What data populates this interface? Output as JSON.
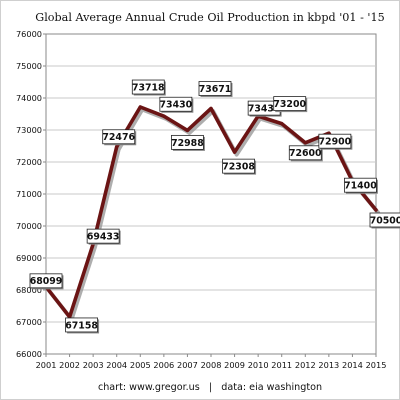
{
  "chart_data": {
    "type": "line",
    "title": "Global Average Annual Crude Oil Production in kbpd '01 - '15",
    "credit": "chart: www.gregor.us   |   data: eia washington",
    "xlabel": "",
    "ylabel": "",
    "x": [
      "2001",
      "2002",
      "2003",
      "2004",
      "2005",
      "2006",
      "2007",
      "2008",
      "2009",
      "2010",
      "2011",
      "2012",
      "2013",
      "2014",
      "2015"
    ],
    "series": [
      {
        "values": [
          68099,
          67158,
          69433,
          72476,
          73718,
          73430,
          72988,
          73671,
          72308,
          73434,
          73200,
          72600,
          72900,
          71400,
          70500
        ]
      }
    ],
    "data_labels": [
      "68099",
      "67158",
      "69433",
      "72476",
      "73718",
      "73430",
      "72988",
      "73671",
      "72308",
      "73434",
      "73200",
      "72600",
      "72900",
      "71400",
      "70500"
    ],
    "ylim": [
      66000,
      76000
    ],
    "y_ticks": [
      "66000",
      "67000",
      "68000",
      "69000",
      "70000",
      "71000",
      "72000",
      "73000",
      "74000",
      "75000",
      "76000"
    ],
    "grid": true,
    "legend": "none",
    "colors": {
      "line": "#6b1414",
      "line_shadow": "#9a9a9a",
      "grid": "#c8c8c8",
      "frame": "#8a8a8a"
    }
  }
}
